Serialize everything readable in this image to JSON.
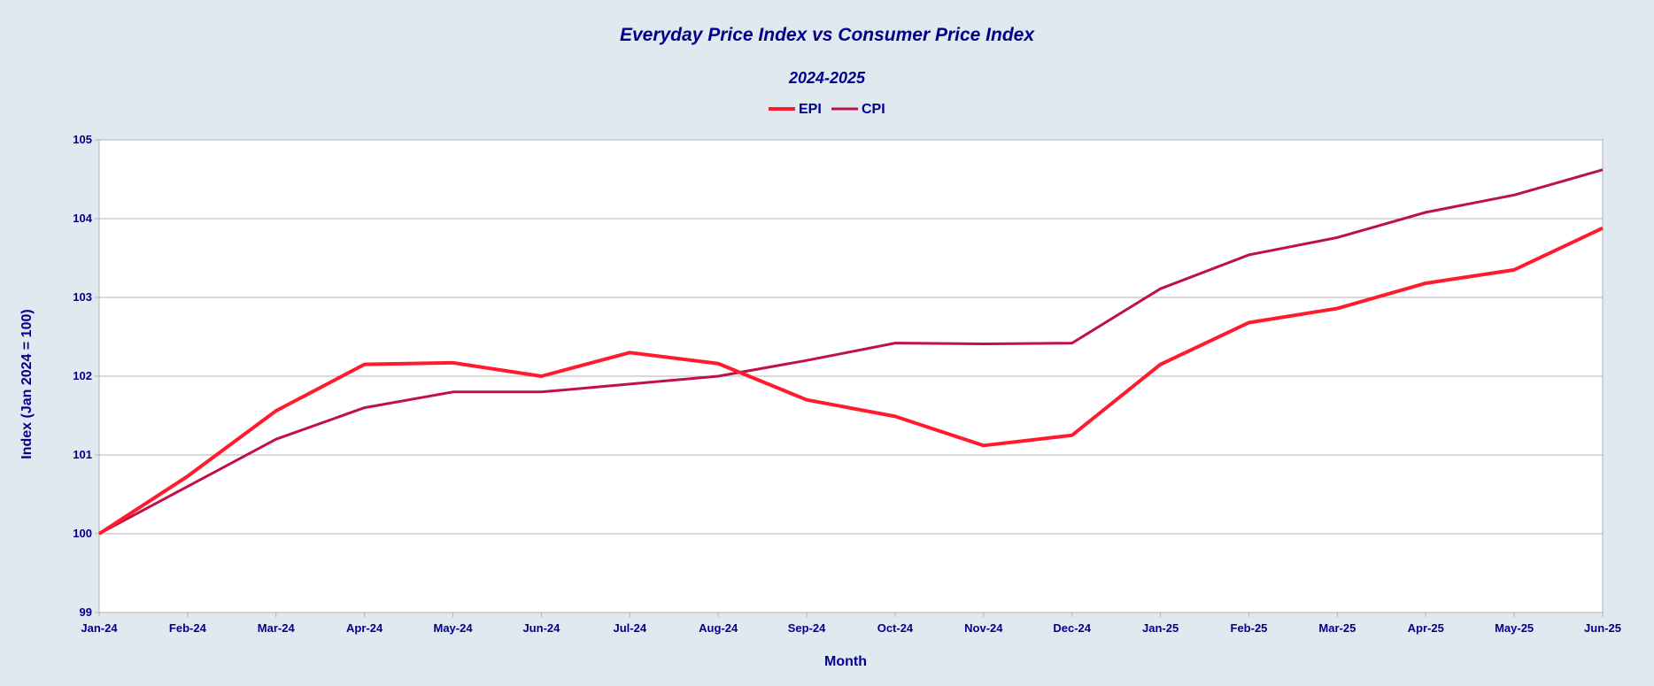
{
  "chart_data": {
    "type": "line",
    "title": "Everyday Price Index vs Consumer Price Index",
    "subtitle": "2024-2025",
    "xlabel": "Month",
    "ylabel": "Index (Jan 2024 = 100)",
    "ylim": [
      99,
      105
    ],
    "yticks": [
      "99",
      "100",
      "101",
      "102",
      "103",
      "104",
      "105"
    ],
    "grid": true,
    "legend_position": "top-center",
    "categories": [
      "Jan-24",
      "Feb-24",
      "Mar-24",
      "Apr-24",
      "May-24",
      "Jun-24",
      "Jul-24",
      "Aug-24",
      "Sep-24",
      "Oct-24",
      "Nov-24",
      "Dec-24",
      "Jan-25",
      "Feb-25",
      "Mar-25",
      "Apr-25",
      "May-25",
      "Jun-25"
    ],
    "series": [
      {
        "name": "EPI",
        "color": "#ff1a2e",
        "values": [
          100.0,
          100.73,
          101.56,
          102.15,
          102.17,
          102.0,
          102.3,
          102.16,
          101.7,
          101.49,
          101.12,
          101.25,
          102.15,
          102.68,
          102.86,
          103.18,
          103.35,
          103.88
        ]
      },
      {
        "name": "CPI",
        "color": "#c0104a",
        "values": [
          100.0,
          100.6,
          101.2,
          101.6,
          101.8,
          101.8,
          101.9,
          102.0,
          102.2,
          102.42,
          102.41,
          102.42,
          103.11,
          103.54,
          103.76,
          104.08,
          104.3,
          104.62
        ]
      }
    ]
  }
}
